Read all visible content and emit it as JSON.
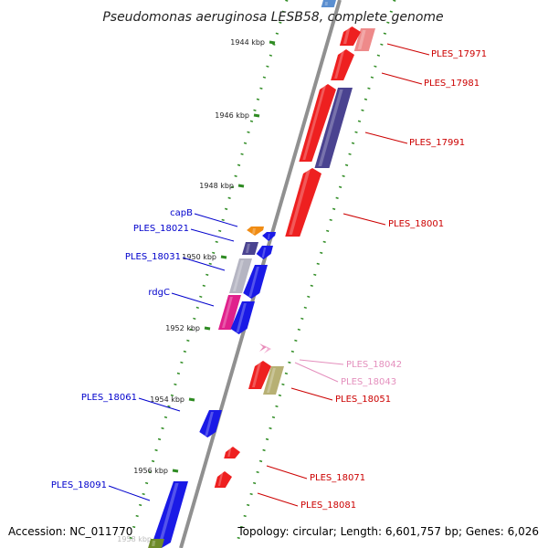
{
  "title": "Pseudomonas aeruginosa LESB58, complete genome",
  "footer": {
    "accession": "Accession: NC_011770",
    "summary": "Topology: circular; Length: 6,601,757 bp; Genes: 6,026"
  },
  "colors": {
    "backbone": "#8c8c8c",
    "tick": "#2e8b22",
    "forward_label": "#0000cc",
    "reverse_label": "#cc0000",
    "ncrna_label": "#e48fbd"
  },
  "ticks": [
    {
      "label": "1944 kbp"
    },
    {
      "label": "1946 kbp"
    },
    {
      "label": "1948 kbp"
    },
    {
      "label": "1950 kbp"
    },
    {
      "label": "1952 kbp"
    },
    {
      "label": "1954 kbp"
    },
    {
      "label": "1956 kbp"
    },
    {
      "label": "1958 kbp"
    }
  ],
  "genes": [
    {
      "id": "g-top-forward",
      "label": "",
      "strand": "+",
      "color": "#5b8fd0"
    },
    {
      "id": "g-top-pink",
      "label": "",
      "strand": "-",
      "color": "#ee8a8a"
    },
    {
      "id": "g-17971",
      "label": "PLES_17971",
      "strand": "-",
      "color": "#ee2020"
    },
    {
      "id": "g-17981",
      "label": "PLES_17981",
      "strand": "-",
      "color": "#ee2020"
    },
    {
      "id": "g-17991-red",
      "label": "",
      "strand": "-",
      "color": "#ee2020"
    },
    {
      "id": "g-17991",
      "label": "PLES_17991",
      "strand": "-",
      "color": "#4a4390"
    },
    {
      "id": "g-18001",
      "label": "PLES_18001",
      "strand": "-",
      "color": "#ee2020"
    },
    {
      "id": "g-capB",
      "label": "capB",
      "strand": "+",
      "color": "#f08c14"
    },
    {
      "id": "g-18021",
      "label": "PLES_18021",
      "strand": "+",
      "color": "#4a4390"
    },
    {
      "id": "g-18031",
      "label": "PLES_18031",
      "strand": "+",
      "color": "#b5b5c2"
    },
    {
      "id": "g-rdgC",
      "label": "rdgC",
      "strand": "+",
      "color": "#e0208c"
    },
    {
      "id": "g-18042",
      "label": "PLES_18042",
      "strand": "-",
      "color": "#f0a0cc"
    },
    {
      "id": "g-18043",
      "label": "PLES_18043",
      "strand": "-",
      "color": "#f0a0cc"
    },
    {
      "id": "g-18051",
      "label": "PLES_18051",
      "strand": "-",
      "color": "#ee2020"
    },
    {
      "id": "g-18051-olive",
      "label": "",
      "strand": "-",
      "color": "#b7b074"
    },
    {
      "id": "g-18061",
      "label": "PLES_18061",
      "strand": "+",
      "color": "#1a1ae6"
    },
    {
      "id": "g-18071",
      "label": "PLES_18071",
      "strand": "-",
      "color": "#ee2020"
    },
    {
      "id": "g-18081",
      "label": "PLES_18081",
      "strand": "-",
      "color": "#ee2020"
    },
    {
      "id": "g-18091",
      "label": "PLES_18091",
      "strand": "+",
      "color": "#1a1ae6"
    },
    {
      "id": "g-bottom-olive",
      "label": "",
      "strand": "+",
      "color": "#6e8b2a"
    }
  ]
}
